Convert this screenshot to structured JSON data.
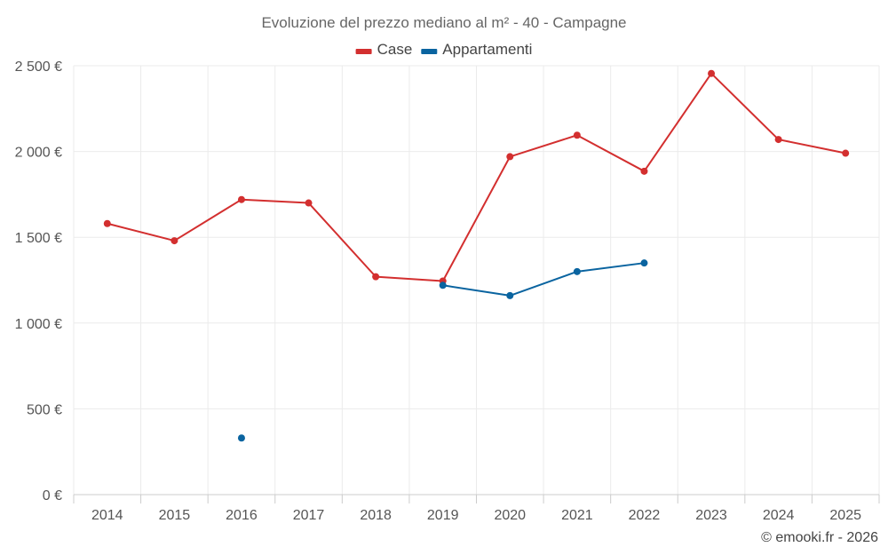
{
  "chart_data": {
    "type": "line",
    "title": "Evoluzione del prezzo mediano al m² - 40 - Campagne",
    "categories": [
      "2014",
      "2015",
      "2016",
      "2017",
      "2018",
      "2019",
      "2020",
      "2021",
      "2022",
      "2023",
      "2024",
      "2025"
    ],
    "series": [
      {
        "name": "Case",
        "color": "#d32f2f",
        "values": [
          1580,
          1480,
          1720,
          1700,
          1270,
          1245,
          1970,
          2095,
          1885,
          2455,
          2070,
          1990
        ]
      },
      {
        "name": "Appartamenti",
        "color": "#0a64a0",
        "values": [
          null,
          null,
          330,
          null,
          null,
          1220,
          1160,
          1300,
          1350,
          null,
          null,
          null
        ]
      }
    ],
    "ylim": [
      0,
      2500
    ],
    "yticks": [
      0,
      500,
      1000,
      1500,
      2000,
      2500
    ],
    "ytick_labels": [
      "0 €",
      "500 €",
      "1 000 €",
      "1 500 €",
      "2 000 €",
      "2 500 €"
    ],
    "legend_position": "top-center",
    "grid": true,
    "credit": "© emooki.fr - 2026"
  }
}
